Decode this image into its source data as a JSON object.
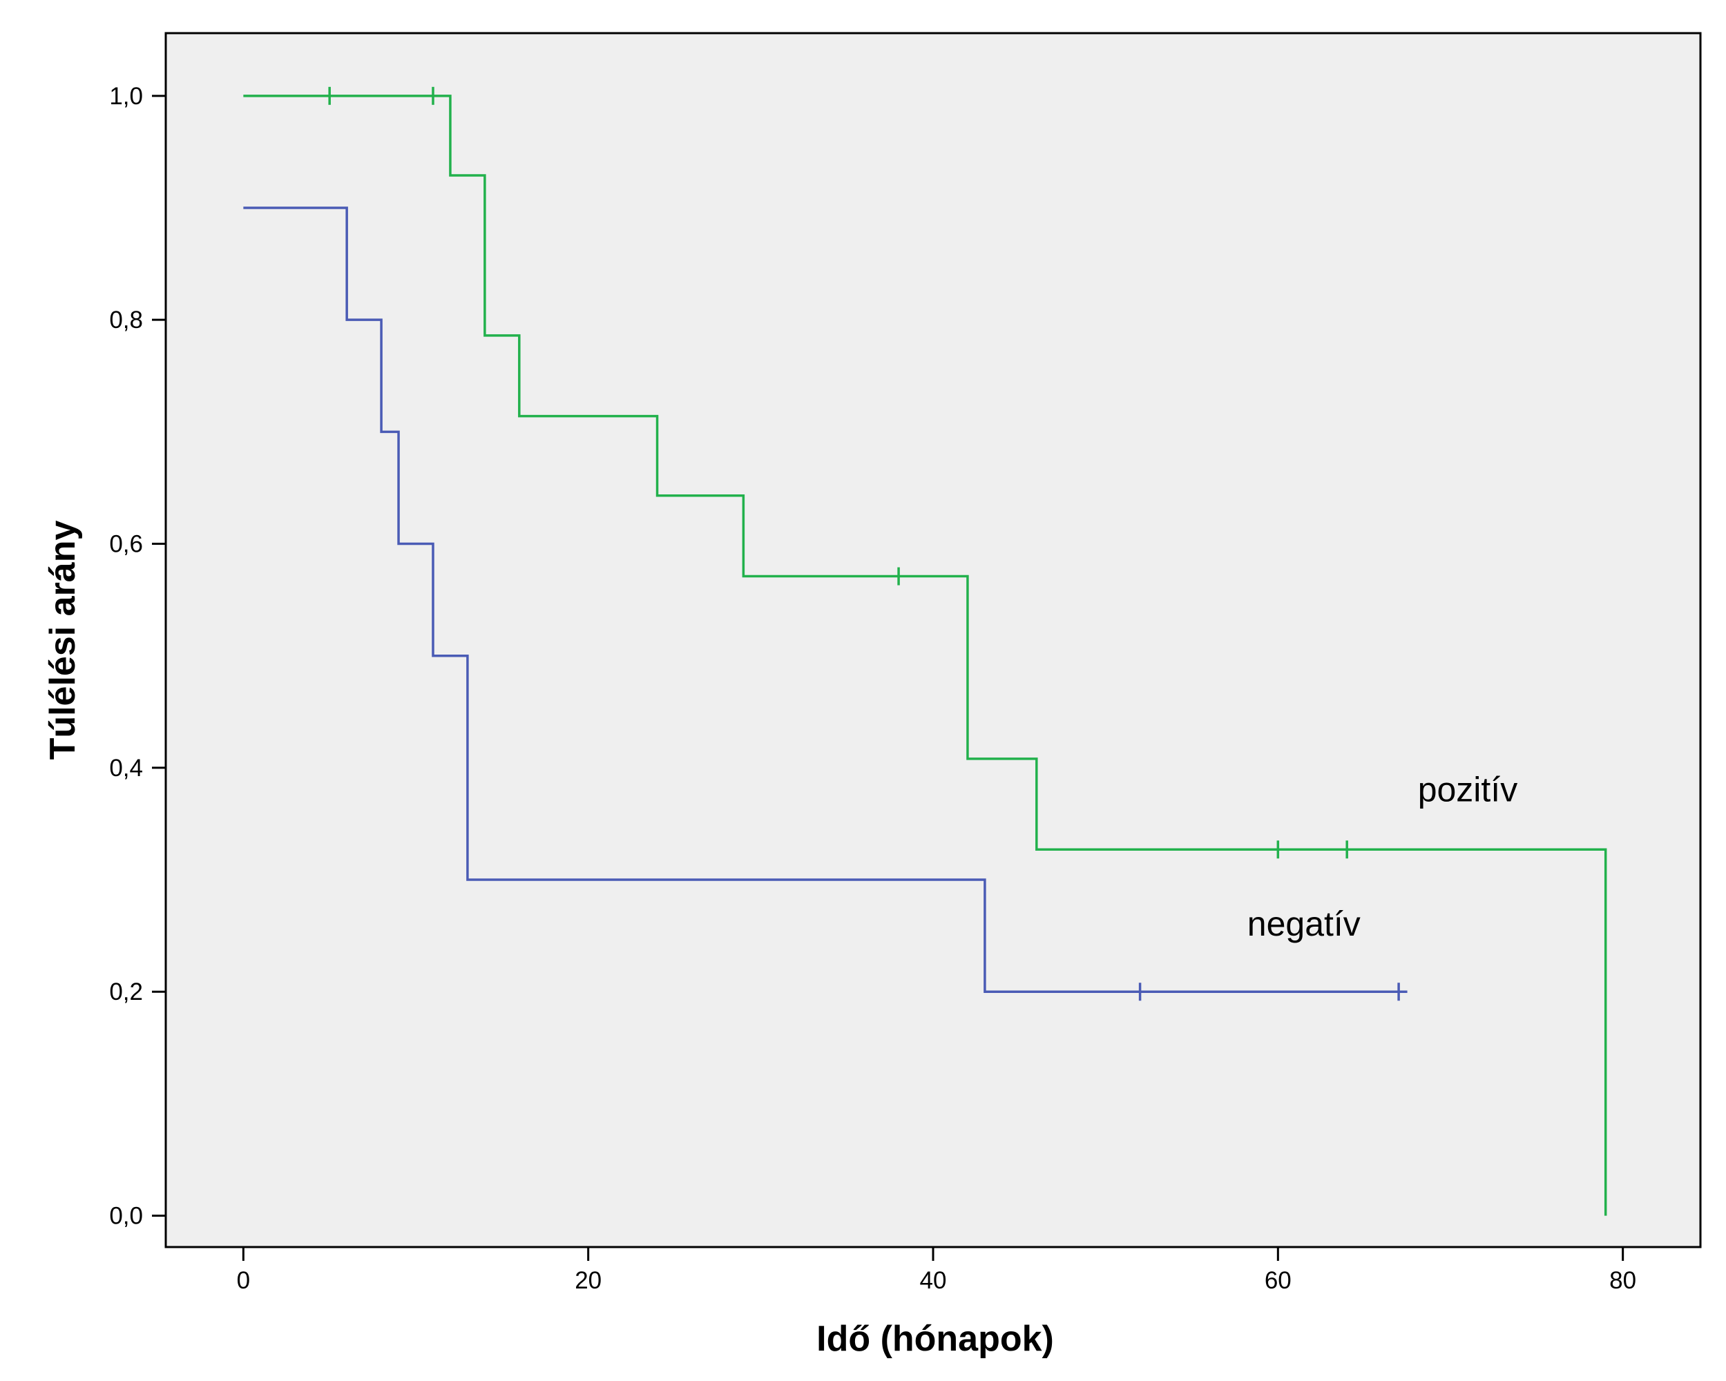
{
  "chart_data": {
    "type": "line",
    "subtype": "kaplan-meier-step",
    "title": "",
    "xlabel": "Idő (hónapok)",
    "ylabel": "Túlélési arány",
    "xlim": [
      -4.5,
      84.5
    ],
    "ylim": [
      -0.028,
      1.056
    ],
    "xticks": [
      0,
      20,
      40,
      60,
      80
    ],
    "xtick_labels": [
      "0",
      "20",
      "40",
      "60",
      "80"
    ],
    "yticks": [
      0.0,
      0.2,
      0.4,
      0.6,
      0.8,
      1.0
    ],
    "ytick_labels": [
      "0,0",
      "0,2",
      "0,4",
      "0,6",
      "0,8",
      "1,0"
    ],
    "grid": false,
    "colors": {
      "plot_background": "#efefef",
      "frame": "#000000",
      "page_background": "#ffffff"
    },
    "series": [
      {
        "name": "pozitív",
        "label": "pozitív",
        "label_at": [
          71,
          0.37
        ],
        "color": "#22b14c",
        "steps": [
          [
            0,
            1.0
          ],
          [
            12,
            0.929
          ],
          [
            14,
            0.786
          ],
          [
            16,
            0.714
          ],
          [
            24,
            0.643
          ],
          [
            29,
            0.571
          ],
          [
            42,
            0.408
          ],
          [
            46,
            0.327
          ],
          [
            79,
            0.0
          ]
        ],
        "end_x": 79,
        "censored": [
          [
            5,
            1.0
          ],
          [
            11,
            1.0
          ],
          [
            38,
            0.571
          ],
          [
            60,
            0.327
          ],
          [
            64,
            0.327
          ]
        ]
      },
      {
        "name": "negatív",
        "label": "negatív",
        "label_at": [
          61.5,
          0.25
        ],
        "color": "#4a5bb5",
        "steps": [
          [
            0,
            0.9
          ],
          [
            6,
            0.8
          ],
          [
            8,
            0.7
          ],
          [
            9,
            0.6
          ],
          [
            11,
            0.5
          ],
          [
            13,
            0.3
          ],
          [
            43,
            0.2
          ]
        ],
        "end_x": 67.5,
        "censored": [
          [
            52,
            0.2
          ],
          [
            67,
            0.2
          ]
        ]
      }
    ]
  }
}
